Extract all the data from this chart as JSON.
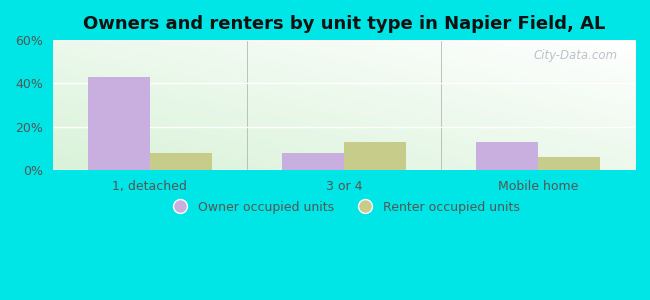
{
  "title": "Owners and renters by unit type in Napier Field, AL",
  "categories": [
    "1, detached",
    "3 or 4",
    "Mobile home"
  ],
  "owner_values": [
    43,
    8,
    13
  ],
  "renter_values": [
    8,
    13,
    6
  ],
  "owner_color": "#c9aee0",
  "renter_color": "#c8cc8a",
  "ylim": [
    0,
    60
  ],
  "yticks": [
    0,
    20,
    40,
    60
  ],
  "ytick_labels": [
    "0%",
    "20%",
    "40%",
    "60%"
  ],
  "legend_owner": "Owner occupied units",
  "legend_renter": "Renter occupied units",
  "bg_outer": "#00e5e5",
  "bar_width": 0.32,
  "title_fontsize": 13,
  "tick_fontsize": 9,
  "legend_fontsize": 9,
  "watermark": "City-Data.com"
}
